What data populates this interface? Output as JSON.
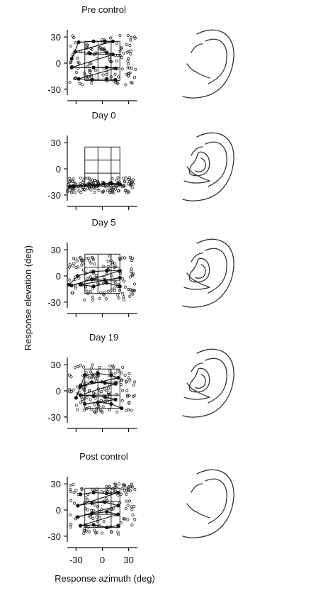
{
  "figure": {
    "y_axis_label": "Response elevation (deg)",
    "x_axis_label": "Response azimuth (deg)",
    "y_tick_labels": [
      "30",
      "0",
      "-30"
    ],
    "x_tick_labels": [
      "-30",
      "0",
      "30"
    ]
  },
  "ear_icons": [
    {
      "name": "ear-normal-icon",
      "mold": false
    },
    {
      "name": "ear-mold-icon",
      "mold": true
    },
    {
      "name": "ear-mold-icon",
      "mold": true
    },
    {
      "name": "ear-mold-icon",
      "mold": true
    },
    {
      "name": "ear-normal-icon",
      "mold": false
    }
  ],
  "chart_data": [
    {
      "type": "scatter",
      "title": "Pre control",
      "xlabel": "",
      "ylabel": "Response elevation (deg)",
      "xlim": [
        -40,
        40
      ],
      "ylim": [
        -35,
        35
      ],
      "target_grid": {
        "x": [
          -20,
          -5,
          10,
          20
        ],
        "y": [
          -20,
          -5,
          10,
          25
        ]
      },
      "response_grid": [
        {
          "x": -35,
          "y": 5
        },
        {
          "x": -27,
          "y": 24
        },
        {
          "x": -10,
          "y": 25
        },
        {
          "x": 3,
          "y": 25
        },
        {
          "x": 12,
          "y": 25
        },
        {
          "x": -31,
          "y": 13
        },
        {
          "x": -14,
          "y": 11
        },
        {
          "x": 5,
          "y": 12
        },
        {
          "x": 12,
          "y": 10
        },
        {
          "x": -35,
          "y": -5
        },
        {
          "x": -10,
          "y": -5
        },
        {
          "x": 5,
          "y": -5
        },
        {
          "x": 15,
          "y": -6
        },
        {
          "x": -27,
          "y": -18
        },
        {
          "x": -12,
          "y": -19
        },
        {
          "x": 5,
          "y": -18
        },
        {
          "x": 15,
          "y": -19
        }
      ],
      "scatter_count": 120,
      "scatter_spread": {
        "xmin": -38,
        "xmax": 38,
        "ymin": -25,
        "ymax": 33
      }
    },
    {
      "type": "scatter",
      "title": "Day 0",
      "xlabel": "",
      "ylabel": "Response elevation (deg)",
      "xlim": [
        -40,
        40
      ],
      "ylim": [
        -35,
        35
      ],
      "target_grid": {
        "x": [
          -20,
          -5,
          10,
          20
        ],
        "y": [
          -20,
          -5,
          10,
          25
        ]
      },
      "response_grid": [
        {
          "x": -37,
          "y": -20
        },
        {
          "x": -20,
          "y": -19
        },
        {
          "x": -5,
          "y": -19
        },
        {
          "x": 10,
          "y": -16
        },
        {
          "x": 20,
          "y": -18
        },
        {
          "x": -33,
          "y": -20
        },
        {
          "x": -14,
          "y": -18
        },
        {
          "x": 2,
          "y": -17
        },
        {
          "x": 18,
          "y": -17
        }
      ],
      "scatter_count": 130,
      "scatter_spread": {
        "xmin": -40,
        "xmax": 36,
        "ymin": -28,
        "ymax": -10
      }
    },
    {
      "type": "scatter",
      "title": "Day 5",
      "xlabel": "",
      "ylabel": "Response elevation (deg)",
      "xlim": [
        -40,
        40
      ],
      "ylim": [
        -35,
        35
      ],
      "target_grid": {
        "x": [
          -20,
          -5,
          10,
          20
        ],
        "y": [
          -20,
          -5,
          10,
          25
        ]
      },
      "response_grid": [
        {
          "x": -38,
          "y": -10
        },
        {
          "x": -28,
          "y": 0
        },
        {
          "x": -10,
          "y": 5
        },
        {
          "x": 5,
          "y": 6
        },
        {
          "x": 20,
          "y": 6
        },
        {
          "x": -35,
          "y": -11
        },
        {
          "x": -12,
          "y": -4
        },
        {
          "x": 3,
          "y": -5
        },
        {
          "x": 20,
          "y": -2
        },
        {
          "x": -25,
          "y": -10
        },
        {
          "x": -10,
          "y": -12
        },
        {
          "x": 5,
          "y": -8
        },
        {
          "x": 20,
          "y": -12
        }
      ],
      "scatter_count": 120,
      "scatter_spread": {
        "xmin": -38,
        "xmax": 38,
        "ymin": -28,
        "ymax": 25
      }
    },
    {
      "type": "scatter",
      "title": "Day 19",
      "xlabel": "",
      "ylabel": "Response elevation (deg)",
      "xlim": [
        -40,
        40
      ],
      "ylim": [
        -35,
        35
      ],
      "target_grid": {
        "x": [
          -20,
          -5,
          10,
          20
        ],
        "y": [
          -20,
          -5,
          10,
          25
        ]
      },
      "response_grid": [
        {
          "x": -30,
          "y": -8
        },
        {
          "x": -20,
          "y": 18
        },
        {
          "x": -5,
          "y": 20
        },
        {
          "x": 10,
          "y": 18
        },
        {
          "x": 18,
          "y": 15
        },
        {
          "x": -25,
          "y": 5
        },
        {
          "x": -12,
          "y": 10
        },
        {
          "x": 3,
          "y": 9
        },
        {
          "x": 15,
          "y": 8
        },
        {
          "x": -25,
          "y": -5
        },
        {
          "x": -10,
          "y": -6
        },
        {
          "x": 3,
          "y": -7
        },
        {
          "x": 15,
          "y": -10
        },
        {
          "x": -20,
          "y": -15
        },
        {
          "x": -5,
          "y": -13
        },
        {
          "x": 10,
          "y": -15
        },
        {
          "x": 22,
          "y": -20
        }
      ],
      "scatter_count": 130,
      "scatter_spread": {
        "xmin": -38,
        "xmax": 38,
        "ymin": -25,
        "ymax": 30
      }
    },
    {
      "type": "scatter",
      "title": "Post control",
      "xlabel": "Response azimuth (deg)",
      "ylabel": "Response elevation (deg)",
      "xlim": [
        -40,
        40
      ],
      "ylim": [
        -35,
        35
      ],
      "target_grid": {
        "x": [
          -20,
          -5,
          10,
          20
        ],
        "y": [
          -20,
          -5,
          10,
          25
        ]
      },
      "response_grid": [
        {
          "x": -25,
          "y": 18
        },
        {
          "x": -10,
          "y": 20
        },
        {
          "x": 5,
          "y": 19
        },
        {
          "x": 18,
          "y": 20
        },
        {
          "x": -28,
          "y": 5
        },
        {
          "x": -12,
          "y": 8
        },
        {
          "x": 3,
          "y": 9
        },
        {
          "x": 18,
          "y": 5
        },
        {
          "x": -28,
          "y": -8
        },
        {
          "x": -12,
          "y": -4
        },
        {
          "x": 5,
          "y": -2
        },
        {
          "x": 18,
          "y": -5
        },
        {
          "x": -25,
          "y": -18
        },
        {
          "x": -10,
          "y": -17
        },
        {
          "x": 5,
          "y": -20
        },
        {
          "x": 18,
          "y": -18
        }
      ],
      "scatter_count": 120,
      "scatter_spread": {
        "xmin": -38,
        "xmax": 38,
        "ymin": -28,
        "ymax": 30
      }
    }
  ]
}
